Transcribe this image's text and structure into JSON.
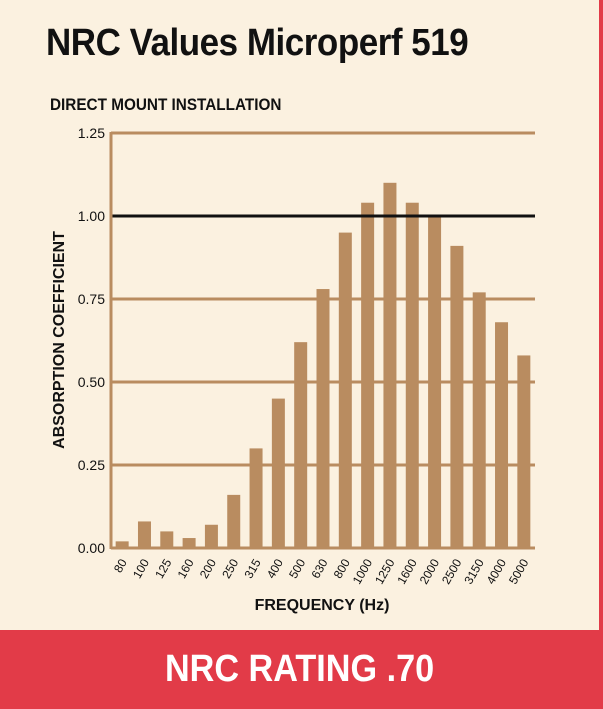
{
  "title": "NRC Values Microperf 519",
  "subtitle": "DIRECT MOUNT INSTALLATION",
  "rating": "NRC RATING .70",
  "colors": {
    "bar": "#b98c60",
    "grid": "#b98c60",
    "reference_line": "#111111",
    "background": "#fbf1e0",
    "accent": "#e23b48"
  },
  "chart_data": {
    "type": "bar",
    "categories": [
      "80",
      "100",
      "125",
      "160",
      "200",
      "250",
      "315",
      "400",
      "500",
      "630",
      "800",
      "1000",
      "1250",
      "1600",
      "2000",
      "2500",
      "3150",
      "4000",
      "5000"
    ],
    "values": [
      0.02,
      0.08,
      0.05,
      0.03,
      0.07,
      0.16,
      0.3,
      0.45,
      0.62,
      0.78,
      0.95,
      1.04,
      1.1,
      1.04,
      1.0,
      0.91,
      0.77,
      0.68,
      0.58
    ],
    "xlabel": "FREQUENCY (Hz)",
    "ylabel": "ABSORPTION COEFFICIENT",
    "ylim": [
      0,
      1.25
    ],
    "yticks": [
      "0.00",
      "0.25",
      "0.50",
      "0.75",
      "1.00",
      "1.25"
    ],
    "reference_line": 1.0,
    "grid": true
  }
}
